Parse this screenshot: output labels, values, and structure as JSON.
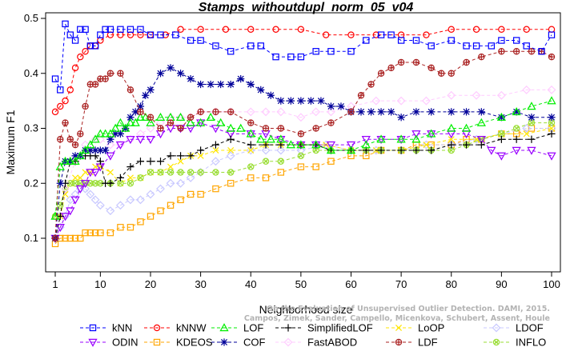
{
  "chart_data": {
    "type": "line",
    "title": "Stamps_withoutdupl_norm_05_v04",
    "xlabel": "Neighborhood size",
    "ylabel": "Maximum F1",
    "xlim": [
      1,
      100
    ],
    "ylim": [
      0.09,
      0.5
    ],
    "xticks": [
      1,
      10,
      20,
      30,
      40,
      50,
      60,
      70,
      80,
      90,
      100
    ],
    "yticks": [
      0.1,
      0.2,
      0.3,
      0.4,
      0.5
    ],
    "grid": false,
    "legend_position": "bottom",
    "watermark": [
      "On the Evaluation of Unsupervised Outlier Detection. DAMI, 2015.",
      "Campos, Zimek, Sander, Campello, Micenkova, Schubert, Assent, Houle"
    ],
    "series": [
      {
        "name": "kNN",
        "color": "#0000ff",
        "marker": "square",
        "x": [
          1,
          2,
          3,
          4,
          5,
          6,
          7,
          8,
          9,
          10,
          11,
          12,
          14,
          16,
          18,
          20,
          22,
          25,
          28,
          30,
          33,
          36,
          40,
          42,
          45,
          48,
          50,
          53,
          56,
          60,
          63,
          66,
          68,
          70,
          73,
          76,
          80,
          83,
          85,
          88,
          90,
          93,
          95,
          98,
          100
        ],
        "y": [
          0.39,
          0.37,
          0.49,
          0.47,
          0.46,
          0.48,
          0.48,
          0.45,
          0.45,
          0.47,
          0.48,
          0.48,
          0.48,
          0.48,
          0.48,
          0.47,
          0.47,
          0.47,
          0.46,
          0.46,
          0.45,
          0.44,
          0.45,
          0.45,
          0.43,
          0.43,
          0.43,
          0.44,
          0.44,
          0.44,
          0.46,
          0.47,
          0.47,
          0.46,
          0.46,
          0.45,
          0.46,
          0.45,
          0.45,
          0.45,
          0.46,
          0.46,
          0.45,
          0.44,
          0.47
        ]
      },
      {
        "name": "kNNW",
        "color": "#ff0000",
        "marker": "circle",
        "x": [
          1,
          2,
          3,
          4,
          5,
          6,
          7,
          8,
          9,
          10,
          12,
          14,
          16,
          18,
          20,
          23,
          26,
          30,
          35,
          40,
          45,
          50,
          55,
          60,
          65,
          70,
          75,
          80,
          85,
          90,
          95,
          100
        ],
        "y": [
          0.33,
          0.34,
          0.35,
          0.37,
          0.41,
          0.43,
          0.44,
          0.45,
          0.45,
          0.46,
          0.47,
          0.47,
          0.47,
          0.47,
          0.47,
          0.47,
          0.48,
          0.48,
          0.48,
          0.48,
          0.48,
          0.48,
          0.47,
          0.47,
          0.47,
          0.47,
          0.47,
          0.48,
          0.48,
          0.48,
          0.48,
          0.48
        ]
      },
      {
        "name": "LOF",
        "color": "#00ee00",
        "marker": "triangle",
        "x": [
          1,
          2,
          3,
          4,
          5,
          6,
          7,
          8,
          9,
          10,
          11,
          12,
          13,
          14,
          15,
          16,
          17,
          18,
          19,
          20,
          22,
          24,
          26,
          28,
          30,
          32,
          34,
          36,
          38,
          40,
          42,
          44,
          46,
          48,
          50,
          53,
          56,
          60,
          63,
          66,
          70,
          73,
          76,
          80,
          83,
          86,
          90,
          93,
          96,
          100
        ],
        "y": [
          0.14,
          0.23,
          0.24,
          0.24,
          0.24,
          0.25,
          0.26,
          0.27,
          0.28,
          0.29,
          0.29,
          0.29,
          0.3,
          0.31,
          0.3,
          0.31,
          0.31,
          0.32,
          0.32,
          0.31,
          0.32,
          0.32,
          0.32,
          0.31,
          0.31,
          0.32,
          0.31,
          0.3,
          0.3,
          0.29,
          0.28,
          0.28,
          0.28,
          0.27,
          0.27,
          0.27,
          0.26,
          0.26,
          0.27,
          0.28,
          0.28,
          0.28,
          0.29,
          0.3,
          0.3,
          0.31,
          0.32,
          0.33,
          0.34,
          0.35
        ]
      },
      {
        "name": "SimplifiedLOF",
        "color": "#000000",
        "marker": "plus",
        "x": [
          1,
          2,
          3,
          4,
          5,
          6,
          7,
          8,
          9,
          10,
          11,
          12,
          14,
          16,
          18,
          20,
          22,
          24,
          26,
          28,
          30,
          33,
          36,
          40,
          43,
          46,
          50,
          53,
          56,
          60,
          63,
          66,
          70,
          73,
          76,
          80,
          83,
          86,
          90,
          93,
          96,
          100
        ],
        "y": [
          0.1,
          0.14,
          0.2,
          0.24,
          0.24,
          0.25,
          0.25,
          0.25,
          0.25,
          0.24,
          0.2,
          0.2,
          0.21,
          0.23,
          0.24,
          0.24,
          0.24,
          0.25,
          0.25,
          0.25,
          0.26,
          0.27,
          0.28,
          0.27,
          0.27,
          0.27,
          0.27,
          0.27,
          0.26,
          0.26,
          0.26,
          0.26,
          0.26,
          0.26,
          0.26,
          0.27,
          0.27,
          0.27,
          0.28,
          0.28,
          0.28,
          0.29
        ]
      },
      {
        "name": "LoOP",
        "color": "#ffe600",
        "marker": "x",
        "x": [
          1,
          2,
          3,
          4,
          5,
          6,
          7,
          8,
          9,
          10,
          12,
          14,
          16,
          18,
          20,
          22,
          24,
          26,
          28,
          30,
          33,
          36,
          40,
          43,
          46,
          50,
          55,
          60,
          65,
          70,
          75,
          80,
          85,
          90,
          95,
          100
        ],
        "y": [
          0.1,
          0.14,
          0.18,
          0.2,
          0.21,
          0.21,
          0.22,
          0.22,
          0.23,
          0.23,
          0.22,
          0.2,
          0.21,
          0.21,
          0.22,
          0.22,
          0.23,
          0.24,
          0.25,
          0.25,
          0.26,
          0.26,
          0.26,
          0.27,
          0.27,
          0.27,
          0.27,
          0.26,
          0.26,
          0.26,
          0.27,
          0.28,
          0.28,
          0.29,
          0.29,
          0.3
        ]
      },
      {
        "name": "LDOF",
        "color": "#c8c8ff",
        "marker": "diamond",
        "x": [
          1,
          2,
          3,
          4,
          5,
          6,
          7,
          8,
          9,
          10,
          12,
          14,
          16,
          18,
          20,
          22,
          24,
          26,
          28,
          30,
          33,
          36,
          40,
          43,
          46,
          50,
          55,
          60,
          65,
          70,
          75,
          80,
          85,
          90,
          95,
          100
        ],
        "y": [
          0.1,
          0.12,
          0.14,
          0.17,
          0.18,
          0.19,
          0.19,
          0.18,
          0.17,
          0.16,
          0.15,
          0.16,
          0.17,
          0.17,
          0.18,
          0.19,
          0.2,
          0.2,
          0.21,
          0.22,
          0.24,
          0.25,
          0.26,
          0.26,
          0.26,
          0.26,
          0.27,
          0.26,
          0.26,
          0.26,
          0.27,
          0.27,
          0.28,
          0.29,
          0.3,
          0.3
        ]
      },
      {
        "name": "ODIN",
        "color": "#9900ff",
        "marker": "triangle-down",
        "x": [
          1,
          2,
          3,
          4,
          5,
          6,
          7,
          8,
          9,
          10,
          12,
          14,
          16,
          18,
          20,
          22,
          24,
          26,
          28,
          30,
          33,
          36,
          40,
          43,
          46,
          50,
          53,
          56,
          60,
          63,
          66,
          70,
          73,
          76,
          80,
          83,
          86,
          88,
          90,
          93,
          96,
          100
        ],
        "y": [
          0.1,
          0.12,
          0.14,
          0.15,
          0.17,
          0.19,
          0.2,
          0.22,
          0.22,
          0.23,
          0.25,
          0.27,
          0.28,
          0.28,
          0.28,
          0.29,
          0.3,
          0.3,
          0.3,
          0.31,
          0.3,
          0.29,
          0.29,
          0.29,
          0.28,
          0.27,
          0.27,
          0.27,
          0.27,
          0.28,
          0.28,
          0.28,
          0.29,
          0.29,
          0.29,
          0.29,
          0.28,
          0.26,
          0.25,
          0.26,
          0.26,
          0.25
        ]
      },
      {
        "name": "KDEOS",
        "color": "#ffa500",
        "marker": "square",
        "x": [
          1,
          2,
          3,
          4,
          5,
          6,
          7,
          8,
          9,
          10,
          12,
          14,
          16,
          18,
          20,
          22,
          24,
          26,
          28,
          30,
          33,
          36,
          40,
          43,
          46,
          50,
          53,
          56,
          60,
          63,
          66,
          70,
          73,
          76,
          80,
          83,
          86,
          90,
          93,
          96,
          100
        ],
        "y": [
          0.09,
          0.1,
          0.1,
          0.1,
          0.1,
          0.1,
          0.11,
          0.11,
          0.11,
          0.11,
          0.11,
          0.12,
          0.12,
          0.13,
          0.14,
          0.15,
          0.16,
          0.17,
          0.18,
          0.18,
          0.19,
          0.2,
          0.21,
          0.21,
          0.22,
          0.23,
          0.23,
          0.24,
          0.25,
          0.25,
          0.26,
          0.26,
          0.27,
          0.27,
          0.27,
          0.28,
          0.28,
          0.29,
          0.29,
          0.3,
          0.3
        ]
      },
      {
        "name": "COF",
        "color": "#000099",
        "marker": "asterisk",
        "x": [
          1,
          2,
          3,
          4,
          5,
          6,
          7,
          8,
          9,
          10,
          11,
          12,
          13,
          14,
          15,
          16,
          17,
          18,
          19,
          20,
          22,
          24,
          26,
          28,
          30,
          32,
          34,
          36,
          38,
          40,
          42,
          44,
          46,
          48,
          50,
          52,
          54,
          56,
          58,
          60,
          62,
          64,
          66,
          68,
          70,
          73,
          76,
          80,
          83,
          86,
          90,
          93,
          96,
          100
        ],
        "y": [
          0.1,
          0.2,
          0.24,
          0.24,
          0.25,
          0.25,
          0.26,
          0.26,
          0.26,
          0.26,
          0.26,
          0.28,
          0.29,
          0.29,
          0.3,
          0.32,
          0.33,
          0.34,
          0.36,
          0.37,
          0.4,
          0.41,
          0.4,
          0.39,
          0.38,
          0.38,
          0.38,
          0.38,
          0.39,
          0.38,
          0.37,
          0.36,
          0.35,
          0.35,
          0.35,
          0.35,
          0.35,
          0.34,
          0.34,
          0.33,
          0.33,
          0.33,
          0.33,
          0.33,
          0.32,
          0.33,
          0.33,
          0.33,
          0.33,
          0.33,
          0.32,
          0.33,
          0.32,
          0.32
        ]
      },
      {
        "name": "FastABOD",
        "color": "#ffccff",
        "marker": "diamond",
        "x": [
          1,
          3,
          5,
          7,
          9,
          10,
          12,
          14,
          16,
          18,
          20,
          22,
          24,
          26,
          28,
          30,
          33,
          36,
          40,
          43,
          46,
          50,
          53,
          56,
          60,
          65,
          70,
          75,
          80,
          85,
          90,
          95,
          100
        ],
        "y": [
          0.1,
          0.19,
          0.24,
          0.27,
          0.28,
          0.28,
          0.27,
          0.27,
          0.28,
          0.29,
          0.3,
          0.31,
          0.32,
          0.32,
          0.32,
          0.33,
          0.33,
          0.33,
          0.33,
          0.33,
          0.33,
          0.32,
          0.33,
          0.33,
          0.34,
          0.35,
          0.35,
          0.35,
          0.36,
          0.36,
          0.36,
          0.37,
          0.37
        ]
      },
      {
        "name": "LDF",
        "color": "#aa2222",
        "marker": "circle-plus",
        "x": [
          1,
          2,
          3,
          4,
          5,
          6,
          7,
          8,
          9,
          10,
          11,
          12,
          14,
          16,
          18,
          20,
          22,
          24,
          26,
          28,
          30,
          33,
          36,
          40,
          43,
          46,
          50,
          53,
          56,
          60,
          62,
          64,
          66,
          68,
          70,
          73,
          76,
          78,
          80,
          83,
          86,
          90,
          93,
          96,
          98,
          100
        ],
        "y": [
          0.1,
          0.28,
          0.31,
          0.28,
          0.27,
          0.29,
          0.34,
          0.38,
          0.38,
          0.39,
          0.39,
          0.4,
          0.4,
          0.37,
          0.33,
          0.32,
          0.3,
          0.31,
          0.3,
          0.32,
          0.33,
          0.33,
          0.33,
          0.31,
          0.3,
          0.3,
          0.29,
          0.3,
          0.31,
          0.33,
          0.36,
          0.38,
          0.4,
          0.41,
          0.42,
          0.42,
          0.41,
          0.4,
          0.4,
          0.42,
          0.43,
          0.44,
          0.44,
          0.44,
          0.44,
          0.43
        ]
      },
      {
        "name": "INFLO",
        "color": "#99dd33",
        "marker": "circle-x",
        "x": [
          1,
          2,
          3,
          4,
          5,
          6,
          7,
          8,
          9,
          10,
          12,
          14,
          16,
          18,
          20,
          22,
          24,
          26,
          28,
          30,
          33,
          36,
          40,
          43,
          46,
          50,
          53,
          56,
          60,
          63,
          66,
          70,
          73,
          76,
          80,
          83,
          86,
          90,
          93,
          96,
          100
        ],
        "y": [
          0.14,
          0.16,
          0.19,
          0.2,
          0.2,
          0.2,
          0.2,
          0.2,
          0.2,
          0.2,
          0.2,
          0.2,
          0.2,
          0.21,
          0.22,
          0.22,
          0.22,
          0.22,
          0.22,
          0.22,
          0.22,
          0.22,
          0.23,
          0.24,
          0.24,
          0.25,
          0.26,
          0.26,
          0.26,
          0.26,
          0.26,
          0.26,
          0.26,
          0.26,
          0.26,
          0.27,
          0.28,
          0.29,
          0.3,
          0.31,
          0.31
        ]
      }
    ]
  }
}
